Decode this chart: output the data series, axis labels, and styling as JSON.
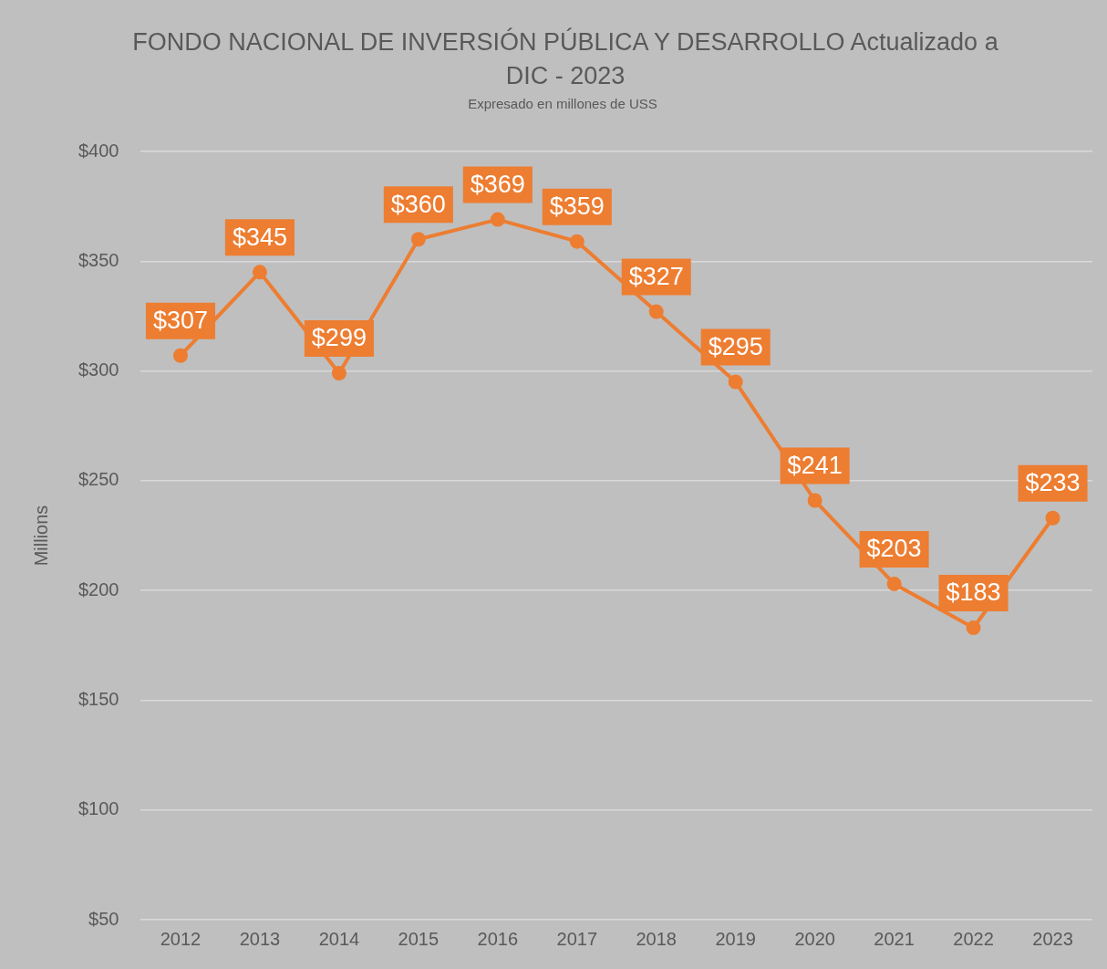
{
  "chart_data": {
    "type": "line",
    "title": "FONDO NACIONAL DE INVERSIÓN PÚBLICA Y DESARROLLO Actualizado a DIC - 2023",
    "subtitle": "Expresado en millones de USS",
    "ylabel": "Millions",
    "categories": [
      "2012",
      "2013",
      "2014",
      "2015",
      "2016",
      "2017",
      "2018",
      "2019",
      "2020",
      "2021",
      "2022",
      "2023"
    ],
    "series": [
      {
        "color": "#ed7d31",
        "values": [
          307,
          345,
          299,
          360,
          369,
          359,
          327,
          295,
          241,
          203,
          183,
          233
        ],
        "value_labels": [
          "$307",
          "$345",
          "$299",
          "$360",
          "$369",
          "$359",
          "$327",
          "$295",
          "$241",
          "$203",
          "$183",
          "$233"
        ]
      }
    ],
    "ylim": [
      50,
      400
    ],
    "yticks": [
      {
        "value": 50,
        "label": "$50"
      },
      {
        "value": 100,
        "label": "$100"
      },
      {
        "value": 150,
        "label": "$150"
      },
      {
        "value": 200,
        "label": "$200"
      },
      {
        "value": 250,
        "label": "$250"
      },
      {
        "value": 300,
        "label": "$300"
      },
      {
        "value": 350,
        "label": "$350"
      },
      {
        "value": 400,
        "label": "$400"
      }
    ],
    "grid": "y",
    "legend": false,
    "marker": "circle",
    "line_style": "solid"
  }
}
